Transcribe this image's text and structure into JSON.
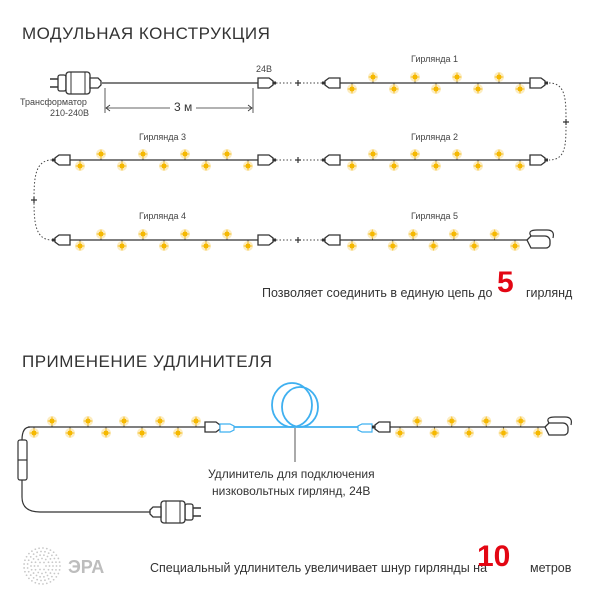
{
  "section1": {
    "title": "МОДУЛЬНАЯ КОНСТРУКЦИЯ",
    "transformer_label": "Трансформатор",
    "transformer_voltage": "210-240В",
    "output_voltage": "24В",
    "cable_length": "3 м",
    "plus": "+",
    "garlands": [
      "Гирлянда 1",
      "Гирлянда 2",
      "Гирлянда 3",
      "Гирлянда 4",
      "Гирлянда 5"
    ],
    "note_prefix": "Позволяет соединить в единую цепь до",
    "note_number": "5",
    "note_suffix": "гирлянд"
  },
  "section2": {
    "title": "ПРИМЕНЕНИЕ УДЛИНИТЕЛЯ",
    "extension_label_line1": "Удлинитель для подключения",
    "extension_label_line2": "низковольтных гирлянд, 24В",
    "note_prefix": "Специальный удлинитель увеличивает шнур гирлянды на",
    "note_number": "10",
    "note_suffix": "метров"
  },
  "brand": {
    "logo_text": "ЭРА"
  },
  "colors": {
    "accent_red": "#e30613",
    "lamp": "#f7c948",
    "extension_blue": "#3fb0f0",
    "wire": "#333333"
  }
}
